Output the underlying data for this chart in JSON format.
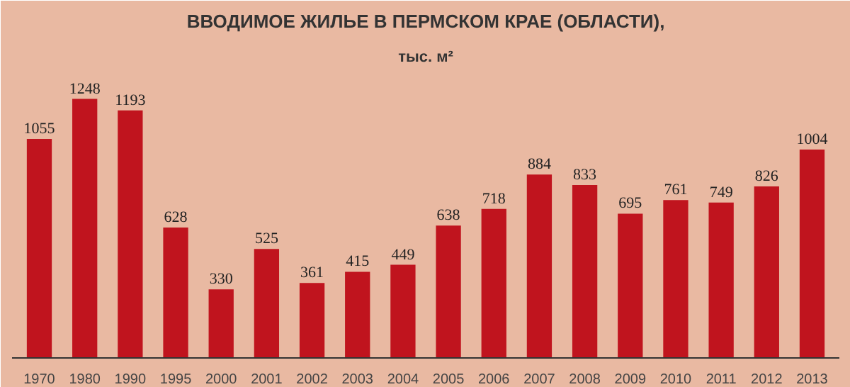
{
  "chart_data": {
    "type": "bar",
    "title": "ВВОДИМОЕ ЖИЛЬЕ В ПЕРМСКОМ КРАЕ (ОБЛАСТИ),",
    "subtitle": "тыс. м²",
    "categories": [
      "1970",
      "1980",
      "1990",
      "1995",
      "2000",
      "2001",
      "2002",
      "2003",
      "2004",
      "2005",
      "2006",
      "2007",
      "2008",
      "2009",
      "2010",
      "2011",
      "2012",
      "2013"
    ],
    "values": [
      1055,
      1248,
      1193,
      628,
      330,
      525,
      361,
      415,
      449,
      638,
      718,
      884,
      833,
      695,
      761,
      749,
      826,
      1004
    ],
    "color": "#c0141e",
    "data_labels": true,
    "grid": false
  }
}
